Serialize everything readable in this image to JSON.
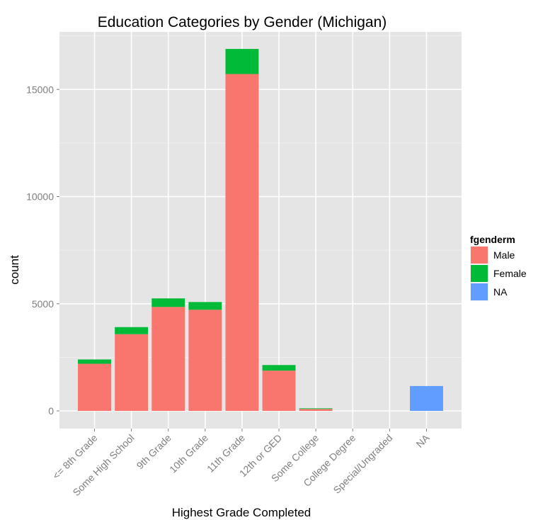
{
  "chart_data": {
    "type": "bar",
    "stacked": true,
    "title": "Education Categories by Gender (Michigan)",
    "xlabel": "Highest Grade Completed",
    "ylabel": "count",
    "categories": [
      "<= 8th Grade",
      "Some High School",
      "9th Grade",
      "10th Grade",
      "11th Grade",
      "12th or GED",
      "Some College",
      "College Degree",
      "Special/Ungraded",
      "NA"
    ],
    "series": [
      {
        "name": "Male",
        "color": "#F8766D",
        "values": [
          2200,
          3580,
          4850,
          4720,
          15720,
          1880,
          90,
          0,
          0,
          0
        ]
      },
      {
        "name": "Female",
        "color": "#00BA38",
        "values": [
          200,
          330,
          400,
          360,
          1170,
          260,
          30,
          0,
          0,
          0
        ]
      },
      {
        "name": "NA",
        "color": "#619CFF",
        "values": [
          0,
          0,
          0,
          0,
          0,
          0,
          0,
          0,
          0,
          1160
        ]
      }
    ],
    "ylim": [
      -900,
      17800
    ],
    "yticks": [
      0,
      5000,
      10000,
      15000
    ],
    "ytick_labels": [
      "0",
      "5000",
      "10000",
      "15000"
    ],
    "grid": true,
    "legend": {
      "title": "fgenderm",
      "position": "right"
    },
    "background_color": "#E5E5E5"
  }
}
